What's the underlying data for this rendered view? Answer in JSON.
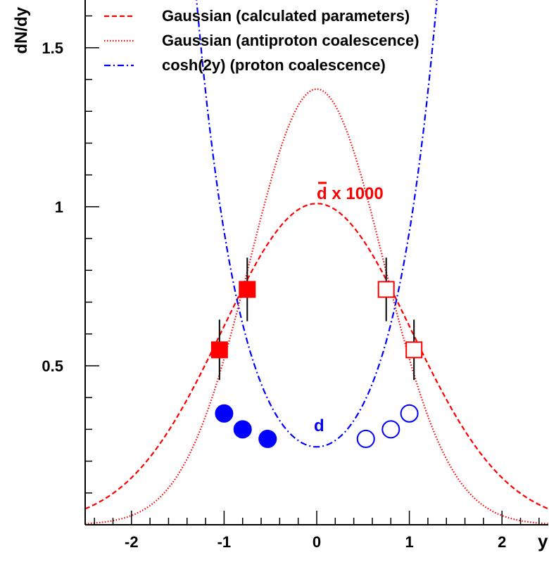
{
  "chart_data": {
    "type": "scatter",
    "xlabel": "y",
    "ylabel": "dN/dy",
    "xlim": [
      -2.5,
      2.5
    ],
    "ylim": [
      0,
      1.65
    ],
    "x_ticks": [
      -2,
      -1,
      0,
      1,
      2
    ],
    "x_tick_labels": [
      "-2",
      "-1",
      "0",
      "1",
      "2"
    ],
    "y_ticks": [
      0.5,
      1,
      1.5
    ],
    "y_tick_labels": [
      "0.5",
      "1",
      "1.5"
    ],
    "grid": false,
    "legend_placement": "top",
    "annotations": {
      "dbar_label": "d x 1000",
      "d_label": "d"
    },
    "colors": {
      "red": "#ff0000",
      "blue": "#0000ff",
      "axis": "#000000"
    },
    "curves": [
      {
        "name": "Gaussian (calculated parameters)",
        "style": "dashed",
        "color": "#ff0000",
        "function": "gaussian",
        "amplitude": 1.01,
        "sigma": 1.02,
        "x_range": [
          -2.5,
          2.5
        ]
      },
      {
        "name": "Gaussian (antiproton coalescence)",
        "style": "dotted",
        "color": "#ff0000",
        "function": "gaussian",
        "amplitude": 1.37,
        "sigma": 0.72,
        "x_range": [
          -2.5,
          2.5
        ]
      },
      {
        "name": "cosh(2y) (proton coalescence)",
        "style": "dashdot",
        "color": "#0000ff",
        "function": "cosh2y",
        "amplitude": 0.245,
        "x_range": [
          -1.6,
          1.6
        ]
      }
    ],
    "series": [
      {
        "label_ref": "dbar_label",
        "marker": "square",
        "color": "#ff0000",
        "points": [
          {
            "x": -1.05,
            "y": 0.55,
            "err": 0.095,
            "filled": true
          },
          {
            "x": -0.75,
            "y": 0.74,
            "err": 0.1,
            "filled": true
          },
          {
            "x": 0.75,
            "y": 0.74,
            "err": 0.1,
            "filled": false
          },
          {
            "x": 1.05,
            "y": 0.55,
            "err": 0.095,
            "filled": false
          }
        ]
      },
      {
        "label_ref": "d_label",
        "marker": "circle",
        "color": "#0000ff",
        "points": [
          {
            "x": -1.0,
            "y": 0.35,
            "filled": true
          },
          {
            "x": -0.8,
            "y": 0.3,
            "filled": true
          },
          {
            "x": -0.53,
            "y": 0.27,
            "filled": true
          },
          {
            "x": 0.53,
            "y": 0.27,
            "filled": false
          },
          {
            "x": 0.8,
            "y": 0.3,
            "filled": false
          },
          {
            "x": 1.0,
            "y": 0.35,
            "filled": false
          }
        ]
      }
    ]
  }
}
